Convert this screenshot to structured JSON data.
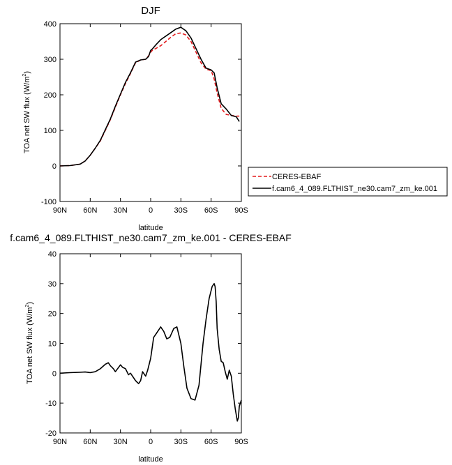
{
  "chart_data": [
    {
      "type": "line",
      "title": "DJF",
      "xlabel": "latitude",
      "ylabel_main": "TOA net SW flux (W/m",
      "ylabel_sup": "2",
      "ylabel_close": ")",
      "xlim": [
        90,
        -90
      ],
      "ylim": [
        -100,
        400
      ],
      "xticks": [
        90,
        60,
        30,
        0,
        -30,
        -60,
        -90
      ],
      "xtick_labels": [
        "90N",
        "60N",
        "30N",
        "0",
        "30S",
        "60S",
        "90S"
      ],
      "yticks": [
        -100,
        0,
        100,
        200,
        300,
        400
      ],
      "ytick_labels": [
        "-100",
        "0",
        "100",
        "200",
        "300",
        "400"
      ],
      "legend_position": "right",
      "series": [
        {
          "name": "CERES-EBAF",
          "color": "#e31a1c",
          "dash": "dashed",
          "x": [
            90,
            80,
            70,
            65,
            60,
            55,
            50,
            45,
            40,
            35,
            30,
            25,
            20,
            15,
            10,
            5,
            2,
            0,
            -2,
            -5,
            -10,
            -15,
            -20,
            -25,
            -30,
            -35,
            -40,
            -45,
            -50,
            -55,
            -60,
            -63,
            -66,
            -70,
            -75,
            -80,
            -85,
            -88
          ],
          "values": [
            0,
            1,
            5,
            14,
            30,
            50,
            70,
            100,
            130,
            165,
            200,
            232,
            260,
            290,
            298,
            300,
            310,
            320,
            326,
            330,
            338,
            350,
            362,
            372,
            374,
            368,
            350,
            320,
            290,
            272,
            268,
            245,
            205,
            162,
            145,
            142,
            140,
            140
          ]
        },
        {
          "name": "f.cam6_4_089.FLTHIST_ne30.cam7_zm_ke.001",
          "color": "#000000",
          "dash": "solid",
          "x": [
            90,
            80,
            70,
            65,
            60,
            55,
            50,
            45,
            40,
            35,
            30,
            25,
            20,
            15,
            10,
            5,
            2,
            0,
            -2,
            -5,
            -10,
            -15,
            -20,
            -25,
            -30,
            -35,
            -40,
            -45,
            -50,
            -55,
            -60,
            -63,
            -66,
            -70,
            -75,
            -80,
            -85,
            -88
          ],
          "values": [
            0,
            1,
            5,
            14,
            30,
            50,
            72,
            102,
            132,
            168,
            202,
            235,
            262,
            292,
            298,
            300,
            308,
            325,
            330,
            340,
            355,
            365,
            375,
            385,
            390,
            380,
            360,
            330,
            300,
            275,
            270,
            262,
            220,
            175,
            160,
            142,
            138,
            125
          ]
        }
      ]
    },
    {
      "type": "line",
      "title": "f.cam6_4_089.FLTHIST_ne30.cam7_zm_ke.001 - CERES-EBAF",
      "xlabel": "latitude",
      "ylabel_main": "TOA net SW flux (W/m",
      "ylabel_sup": "2",
      "ylabel_close": ")",
      "xlim": [
        90,
        -90
      ],
      "ylim": [
        -20,
        40
      ],
      "xticks": [
        90,
        60,
        30,
        0,
        -30,
        -60,
        -90
      ],
      "xtick_labels": [
        "90N",
        "60N",
        "30N",
        "0",
        "30S",
        "60S",
        "90S"
      ],
      "yticks": [
        -20,
        -10,
        0,
        10,
        20,
        30,
        40
      ],
      "ytick_labels": [
        "-20",
        "-10",
        "0",
        "10",
        "20",
        "30",
        "40"
      ],
      "series": [
        {
          "color": "#000000",
          "dash": "solid",
          "x": [
            90,
            80,
            70,
            65,
            60,
            55,
            50,
            45,
            42,
            40,
            37,
            35,
            30,
            28,
            25,
            22,
            20,
            15,
            12,
            10,
            8,
            5,
            3,
            0,
            -3,
            -6,
            -10,
            -13,
            -16,
            -19,
            -23,
            -26,
            -30,
            -33,
            -36,
            -40,
            -44,
            -48,
            -52,
            -55,
            -58,
            -61,
            -63,
            -64,
            -65,
            -66,
            -68,
            -70,
            -72,
            -74,
            -76,
            -78,
            -80,
            -82,
            -84,
            -86,
            -87,
            -88,
            -90
          ],
          "values": [
            0,
            0.2,
            0.3,
            0.4,
            0.2,
            0.5,
            1.5,
            3.0,
            3.5,
            2.5,
            1.5,
            0.5,
            2.8,
            2.0,
            1.5,
            -0.5,
            0,
            -2.5,
            -3.5,
            -2.5,
            0.5,
            -1.0,
            1.0,
            5.0,
            12.0,
            13.5,
            15.5,
            14.0,
            11.5,
            12.0,
            15.0,
            15.5,
            10.0,
            2.0,
            -5.0,
            -8.5,
            -9.0,
            -4.0,
            10.0,
            18.0,
            25.0,
            29.0,
            30.0,
            29.0,
            24.0,
            15.0,
            8.0,
            4.0,
            3.5,
            0.5,
            -2.0,
            1.0,
            -1.0,
            -7.0,
            -12.0,
            -16.0,
            -15.0,
            -11.0,
            -9.0
          ]
        }
      ]
    }
  ],
  "legend": {
    "entries": [
      {
        "label": "CERES-EBAF",
        "color": "#e31a1c",
        "dash": "dashed"
      },
      {
        "label": "f.cam6_4_089.FLTHIST_ne30.cam7_zm_ke.001",
        "color": "#000000",
        "dash": "solid"
      }
    ]
  }
}
